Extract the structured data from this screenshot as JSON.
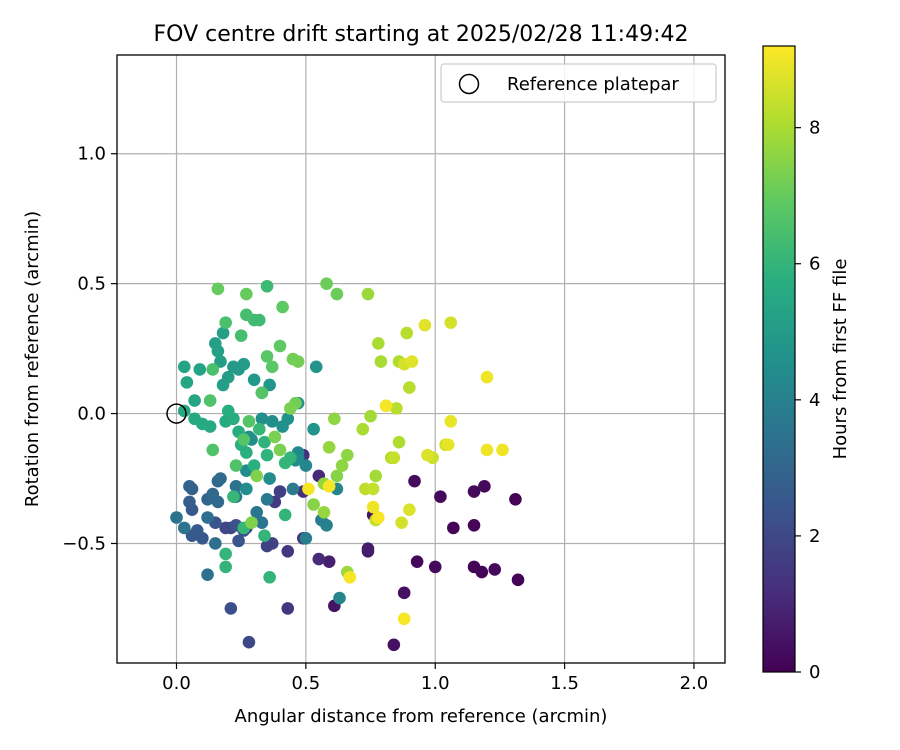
{
  "chart_data": {
    "type": "scatter",
    "title": "FOV centre drift starting at 2025/02/28 11:49:42",
    "xlabel": "Angular distance from reference (arcmin)",
    "ylabel": "Rotation from reference (arcmin)",
    "xlim": [
      -0.23,
      2.12
    ],
    "ylim": [
      -0.96,
      1.38
    ],
    "xticks": [
      0.0,
      0.5,
      1.0,
      1.5,
      2.0
    ],
    "xtick_labels": [
      "0.0",
      "0.5",
      "1.0",
      "1.5",
      "2.0"
    ],
    "yticks": [
      -0.5,
      0.0,
      0.5,
      1.0
    ],
    "ytick_labels": [
      "−0.5",
      "0.0",
      "0.5",
      "1.0"
    ],
    "grid": true,
    "legend_placement": "top-right",
    "colormap": "viridis",
    "colorbar": {
      "label": "Hours from first FF file",
      "range": [
        0,
        9.2
      ],
      "ticks": [
        0,
        2,
        4,
        6,
        8
      ],
      "tick_labels": [
        "0",
        "2",
        "4",
        "6",
        "8"
      ]
    },
    "reference": {
      "name": "Reference platepar",
      "x": 0.0,
      "y": 0.0
    },
    "series": [
      {
        "points": [
          [
            0.93,
            -0.57,
            0.2
          ],
          [
            1.0,
            -0.59,
            0.2
          ],
          [
            1.07,
            -0.44,
            0.1
          ],
          [
            1.15,
            -0.43,
            0.1
          ],
          [
            1.15,
            -0.59,
            0.1
          ],
          [
            1.18,
            -0.61,
            0.1
          ],
          [
            1.23,
            -0.6,
            0.2
          ],
          [
            1.32,
            -0.64,
            0.1
          ],
          [
            1.31,
            -0.33,
            0.1
          ],
          [
            1.19,
            -0.28,
            0.2
          ],
          [
            1.15,
            -0.3,
            0.2
          ],
          [
            1.02,
            -0.32,
            0.2
          ],
          [
            0.92,
            -0.26,
            0.3
          ],
          [
            0.88,
            -0.69,
            0.4
          ],
          [
            0.84,
            -0.89,
            0.4
          ],
          [
            0.61,
            -0.74,
            0.5
          ],
          [
            0.76,
            -0.39,
            0.5
          ],
          [
            0.74,
            -0.53,
            0.6
          ],
          [
            0.74,
            -0.52,
            0.7
          ],
          [
            0.59,
            -0.57,
            0.8
          ],
          [
            0.55,
            -0.56,
            1.1
          ],
          [
            0.55,
            -0.24,
            1.1
          ],
          [
            0.49,
            -0.16,
            1.2
          ],
          [
            0.49,
            -0.3,
            1.2
          ],
          [
            0.49,
            -0.48,
            1.4
          ],
          [
            0.43,
            -0.53,
            1.5
          ],
          [
            0.43,
            -0.75,
            1.5
          ],
          [
            0.38,
            -0.34,
            1.6
          ],
          [
            0.4,
            -0.3,
            1.7
          ],
          [
            0.35,
            -0.51,
            1.8
          ],
          [
            0.37,
            -0.5,
            1.8
          ],
          [
            0.27,
            -0.44,
            1.9
          ],
          [
            0.21,
            -0.44,
            2.0
          ],
          [
            0.19,
            -0.44,
            2.0
          ],
          [
            0.28,
            -0.88,
            2.0
          ],
          [
            0.21,
            -0.75,
            2.2
          ],
          [
            0.23,
            -0.43,
            2.3
          ],
          [
            0.26,
            -0.45,
            2.3
          ],
          [
            0.24,
            -0.49,
            2.4
          ],
          [
            0.15,
            -0.42,
            2.4
          ],
          [
            0.1,
            -0.48,
            2.5
          ],
          [
            0.06,
            -0.47,
            2.6
          ],
          [
            0.08,
            -0.45,
            2.6
          ],
          [
            0.06,
            -0.37,
            2.6
          ],
          [
            0.05,
            -0.34,
            2.7
          ],
          [
            0.06,
            -0.29,
            2.8
          ],
          [
            0.05,
            -0.28,
            2.9
          ],
          [
            0.12,
            -0.33,
            3.0
          ],
          [
            0.14,
            -0.31,
            3.1
          ],
          [
            0.16,
            -0.34,
            3.1
          ],
          [
            0.16,
            -0.26,
            3.1
          ],
          [
            0.17,
            -0.25,
            3.2
          ],
          [
            0.12,
            -0.4,
            3.3
          ],
          [
            0.15,
            -0.5,
            3.3
          ],
          [
            0.12,
            -0.62,
            3.4
          ],
          [
            0.0,
            -0.4,
            3.5
          ],
          [
            0.03,
            -0.44,
            3.5
          ],
          [
            0.23,
            -0.28,
            3.5
          ],
          [
            0.31,
            -0.38,
            3.6
          ],
          [
            0.33,
            -0.42,
            3.6
          ],
          [
            0.23,
            -0.32,
            3.7
          ],
          [
            0.35,
            -0.33,
            3.7
          ],
          [
            0.45,
            -0.29,
            3.8
          ],
          [
            0.5,
            -0.48,
            3.9
          ],
          [
            0.56,
            -0.41,
            3.9
          ],
          [
            0.58,
            -0.43,
            4.0
          ],
          [
            0.62,
            -0.29,
            4.1
          ],
          [
            0.63,
            -0.71,
            4.1
          ],
          [
            0.5,
            -0.2,
            4.2
          ],
          [
            0.47,
            -0.17,
            4.3
          ],
          [
            0.47,
            -0.15,
            4.3
          ],
          [
            0.46,
            -0.18,
            4.4
          ],
          [
            0.36,
            -0.25,
            4.4
          ],
          [
            0.27,
            -0.22,
            4.4
          ],
          [
            0.27,
            -0.29,
            4.4
          ],
          [
            0.28,
            -0.09,
            4.5
          ],
          [
            0.29,
            -0.1,
            4.5
          ],
          [
            0.33,
            -0.02,
            4.5
          ],
          [
            0.37,
            -0.03,
            4.5
          ],
          [
            0.41,
            -0.05,
            4.6
          ],
          [
            0.43,
            -0.02,
            4.6
          ],
          [
            0.47,
            0.04,
            4.7
          ],
          [
            0.53,
            -0.06,
            4.7
          ],
          [
            0.54,
            0.18,
            4.7
          ],
          [
            0.36,
            0.11,
            4.8
          ],
          [
            0.33,
            0.08,
            4.9
          ],
          [
            0.3,
            0.13,
            4.9
          ],
          [
            0.26,
            0.19,
            5.0
          ],
          [
            0.24,
            0.17,
            5.0
          ],
          [
            0.22,
            0.18,
            5.0
          ],
          [
            0.2,
            0.14,
            5.1
          ],
          [
            0.18,
            0.11,
            5.1
          ],
          [
            0.17,
            0.2,
            5.1
          ],
          [
            0.15,
            0.27,
            5.2
          ],
          [
            0.18,
            0.31,
            5.2
          ],
          [
            0.16,
            0.24,
            5.2
          ],
          [
            0.09,
            0.17,
            5.3
          ],
          [
            0.03,
            0.18,
            5.3
          ],
          [
            0.04,
            0.12,
            5.4
          ],
          [
            0.07,
            0.05,
            5.4
          ],
          [
            0.03,
            0.01,
            5.5
          ],
          [
            0.07,
            -0.02,
            5.5
          ],
          [
            0.1,
            -0.04,
            5.6
          ],
          [
            0.13,
            -0.05,
            5.6
          ],
          [
            0.19,
            -0.03,
            5.6
          ],
          [
            0.2,
            0.01,
            5.7
          ],
          [
            0.22,
            -0.02,
            5.7
          ],
          [
            0.24,
            -0.07,
            5.7
          ],
          [
            0.25,
            -0.12,
            5.8
          ],
          [
            0.27,
            -0.15,
            5.8
          ],
          [
            0.3,
            -0.2,
            5.8
          ],
          [
            0.34,
            -0.11,
            5.9
          ],
          [
            0.35,
            -0.16,
            5.9
          ],
          [
            0.42,
            -0.19,
            6.0
          ],
          [
            0.44,
            -0.17,
            6.0
          ],
          [
            0.42,
            -0.39,
            6.0
          ],
          [
            0.36,
            -0.63,
            6.0
          ],
          [
            0.19,
            -0.59,
            6.0
          ],
          [
            0.19,
            -0.54,
            6.0
          ],
          [
            0.34,
            -0.47,
            6.0
          ],
          [
            0.22,
            -0.32,
            6.1
          ],
          [
            0.26,
            -0.44,
            6.1
          ],
          [
            0.32,
            -0.06,
            6.1
          ],
          [
            0.35,
            0.49,
            6.2
          ],
          [
            0.32,
            0.36,
            6.3
          ],
          [
            0.3,
            0.36,
            6.3
          ],
          [
            0.27,
            0.38,
            6.4
          ],
          [
            0.25,
            0.3,
            6.4
          ],
          [
            0.19,
            0.35,
            6.5
          ],
          [
            0.14,
            0.17,
            6.5
          ],
          [
            0.13,
            0.05,
            6.6
          ],
          [
            0.14,
            -0.14,
            6.6
          ],
          [
            0.23,
            -0.2,
            6.6
          ],
          [
            0.26,
            -0.1,
            6.7
          ],
          [
            0.28,
            -0.03,
            6.7
          ],
          [
            0.33,
            0.08,
            6.7
          ],
          [
            0.35,
            0.22,
            6.8
          ],
          [
            0.37,
            0.18,
            6.8
          ],
          [
            0.4,
            0.26,
            6.9
          ],
          [
            0.41,
            0.41,
            6.9
          ],
          [
            0.27,
            0.46,
            7.0
          ],
          [
            0.16,
            0.48,
            7.0
          ],
          [
            0.58,
            0.5,
            7.1
          ],
          [
            0.62,
            0.46,
            7.1
          ],
          [
            0.45,
            0.21,
            7.2
          ],
          [
            0.47,
            0.2,
            7.2
          ],
          [
            0.46,
            0.04,
            7.2
          ],
          [
            0.44,
            0.02,
            7.3
          ],
          [
            0.38,
            -0.09,
            7.3
          ],
          [
            0.4,
            -0.14,
            7.3
          ],
          [
            0.31,
            -0.24,
            7.4
          ],
          [
            0.29,
            -0.42,
            7.4
          ],
          [
            0.53,
            -0.35,
            7.5
          ],
          [
            0.62,
            -0.24,
            7.5
          ],
          [
            0.64,
            -0.2,
            7.6
          ],
          [
            0.66,
            -0.16,
            7.6
          ],
          [
            0.61,
            -0.02,
            7.6
          ],
          [
            0.59,
            -0.13,
            7.7
          ],
          [
            0.57,
            -0.27,
            7.7
          ],
          [
            0.57,
            -0.38,
            7.7
          ],
          [
            0.66,
            -0.61,
            7.8
          ],
          [
            0.74,
            0.46,
            7.8
          ],
          [
            0.75,
            -0.01,
            7.9
          ],
          [
            0.77,
            -0.24,
            7.9
          ],
          [
            0.72,
            -0.06,
            8.0
          ],
          [
            0.78,
            0.27,
            8.0
          ],
          [
            0.79,
            0.2,
            8.0
          ],
          [
            0.86,
            0.2,
            8.1
          ],
          [
            0.83,
            -0.17,
            8.1
          ],
          [
            0.86,
            -0.11,
            8.1
          ],
          [
            0.89,
            0.31,
            8.2
          ],
          [
            0.9,
            0.1,
            8.2
          ],
          [
            0.85,
            0.02,
            8.2
          ],
          [
            0.81,
            0.03,
            8.3
          ],
          [
            0.73,
            -0.29,
            8.3
          ],
          [
            0.77,
            -0.41,
            8.4
          ],
          [
            0.76,
            -0.29,
            8.4
          ],
          [
            0.84,
            -0.17,
            8.4
          ],
          [
            0.99,
            -0.17,
            8.5
          ],
          [
            1.04,
            -0.12,
            8.5
          ],
          [
            1.06,
            0.35,
            8.6
          ],
          [
            0.88,
            0.19,
            8.6
          ],
          [
            0.87,
            -0.42,
            8.6
          ],
          [
            0.9,
            -0.37,
            8.7
          ],
          [
            0.97,
            -0.16,
            8.7
          ],
          [
            0.91,
            0.2,
            8.8
          ],
          [
            0.96,
            0.34,
            8.8
          ],
          [
            1.06,
            -0.03,
            8.9
          ],
          [
            1.05,
            -0.12,
            8.9
          ],
          [
            1.2,
            0.14,
            9.0
          ],
          [
            1.2,
            -0.14,
            9.0
          ],
          [
            1.26,
            -0.14,
            9.0
          ],
          [
            0.76,
            -0.36,
            9.0
          ],
          [
            0.67,
            -0.63,
            9.1
          ],
          [
            0.88,
            -0.79,
            9.1
          ],
          [
            0.59,
            -0.28,
            9.1
          ],
          [
            0.51,
            -0.29,
            9.1
          ],
          [
            0.78,
            -0.4,
            9.1
          ],
          [
            0.81,
            0.03,
            9.1
          ]
        ]
      }
    ]
  }
}
